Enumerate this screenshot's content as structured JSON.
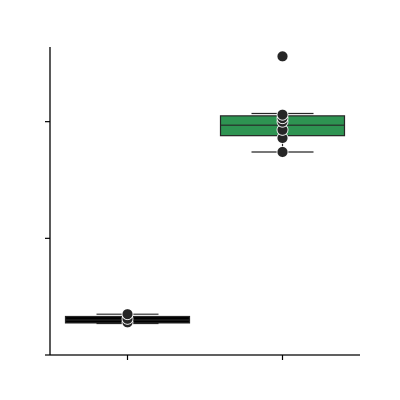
{
  "chart_data": {
    "type": "box",
    "title": "",
    "xlabel": "",
    "ylabel": "",
    "grid": false,
    "ylim": [
      0,
      2.7
    ],
    "yticks": [
      0,
      1,
      2
    ],
    "categories": [
      "",
      ""
    ],
    "colors": [
      "#000000",
      "#2e9452"
    ],
    "point_color": "#262626",
    "boxes": [
      {
        "whisker_low": 0.27,
        "q1": 0.275,
        "median": 0.3,
        "q3": 0.33,
        "whisker_high": 0.35,
        "points": [
          0.28,
          0.31,
          0.35
        ]
      },
      {
        "whisker_low": 1.74,
        "q1": 1.88,
        "median": 1.97,
        "q3": 2.05,
        "whisker_high": 2.07,
        "points": [
          1.74,
          1.86,
          1.93,
          2.0,
          2.03,
          2.06,
          2.56
        ]
      }
    ]
  }
}
